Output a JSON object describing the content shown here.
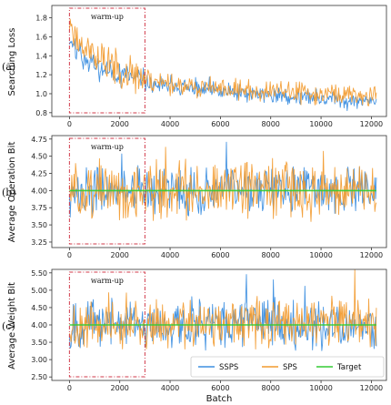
{
  "figure": {
    "xlabel": "Batch"
  },
  "colors": {
    "SSPS": "#3d8fe0",
    "SPS": "#f29a2e",
    "Target": "#33cc33",
    "warmup_box": "#d13a4a",
    "axis": "#333333"
  },
  "chart_data": [
    {
      "type": "line",
      "panel_label": "(a)",
      "ylabel": "Searching Loss",
      "xlim": [
        -700,
        12600
      ],
      "ylim": [
        0.76,
        1.93
      ],
      "xticks": [
        0,
        2000,
        4000,
        6000,
        8000,
        10000,
        12000
      ],
      "yticks": [
        0.8,
        1.0,
        1.2,
        1.4,
        1.6,
        1.8
      ],
      "ytick_labels": [
        "0.8",
        "1.0",
        "1.2",
        "1.4",
        "1.6",
        "1.8"
      ],
      "annotation": {
        "text": "warm-up",
        "x_range": [
          0,
          3000
        ]
      },
      "series": [
        {
          "name": "SSPS",
          "base": [
            [
              0,
              1.6
            ],
            [
              300,
              1.45
            ],
            [
              1000,
              1.3
            ],
            [
              2000,
              1.2
            ],
            [
              3000,
              1.12
            ],
            [
              4000,
              1.08
            ],
            [
              6000,
              1.02
            ],
            [
              8000,
              0.98
            ],
            [
              10000,
              0.95
            ],
            [
              12000,
              0.92
            ]
          ],
          "amp": 0.07,
          "seed": 11
        },
        {
          "name": "SPS",
          "base": [
            [
              0,
              1.75
            ],
            [
              300,
              1.6
            ],
            [
              1000,
              1.4
            ],
            [
              2000,
              1.25
            ],
            [
              3000,
              1.15
            ],
            [
              4000,
              1.1
            ],
            [
              6000,
              1.05
            ],
            [
              8000,
              1.02
            ],
            [
              10000,
              1.0
            ],
            [
              12000,
              0.98
            ]
          ],
          "amp": 0.09,
          "seed": 23
        }
      ]
    },
    {
      "type": "line",
      "panel_label": "(b)",
      "ylabel": "Average Operation Bit",
      "xlim": [
        -700,
        12600
      ],
      "ylim": [
        3.17,
        4.8
      ],
      "xticks": [
        0,
        2000,
        4000,
        6000,
        8000,
        10000,
        12000
      ],
      "yticks": [
        3.25,
        3.5,
        3.75,
        4.0,
        4.25,
        4.5,
        4.75
      ],
      "ytick_labels": [
        "3.25",
        "3.50",
        "3.75",
        "4.00",
        "4.25",
        "4.50",
        "4.75"
      ],
      "annotation": {
        "text": "warm-up",
        "x_range": [
          0,
          3000
        ]
      },
      "series": [
        {
          "name": "SSPS",
          "base": [
            [
              0,
              4.0
            ],
            [
              12000,
              4.0
            ]
          ],
          "amp": 0.28,
          "seed": 37
        },
        {
          "name": "SPS",
          "base": [
            [
              0,
              4.0
            ],
            [
              12000,
              4.0
            ]
          ],
          "amp": 0.33,
          "seed": 51
        },
        {
          "name": "Target",
          "base": [
            [
              0,
              4.0
            ],
            [
              12000,
              4.0
            ]
          ],
          "amp": 0,
          "seed": 0
        }
      ]
    },
    {
      "type": "line",
      "panel_label": "(c)",
      "ylabel": "Average Weight Bit",
      "xlim": [
        -700,
        12600
      ],
      "ylim": [
        2.4,
        5.6
      ],
      "xticks": [
        0,
        2000,
        4000,
        6000,
        8000,
        10000,
        12000
      ],
      "yticks": [
        2.5,
        3.0,
        3.5,
        4.0,
        4.5,
        5.0,
        5.5
      ],
      "ytick_labels": [
        "2.50",
        "3.00",
        "3.50",
        "4.00",
        "4.50",
        "5.00",
        "5.50"
      ],
      "annotation": {
        "text": "warm-up",
        "x_range": [
          0,
          3000
        ]
      },
      "legend": {
        "position": "lower-right",
        "entries": [
          "SSPS",
          "SPS",
          "Target"
        ]
      },
      "series": [
        {
          "name": "SSPS",
          "base": [
            [
              0,
              4.0
            ],
            [
              3000,
              4.05
            ],
            [
              5000,
              4.05
            ],
            [
              12000,
              4.0
            ]
          ],
          "amp": 0.55,
          "seed": 67
        },
        {
          "name": "SPS",
          "base": [
            [
              0,
              4.0
            ],
            [
              12000,
              4.05
            ]
          ],
          "amp": 0.55,
          "seed": 79
        },
        {
          "name": "Target",
          "base": [
            [
              0,
              4.0
            ],
            [
              12000,
              4.0
            ]
          ],
          "amp": 0,
          "seed": 0
        }
      ]
    }
  ]
}
